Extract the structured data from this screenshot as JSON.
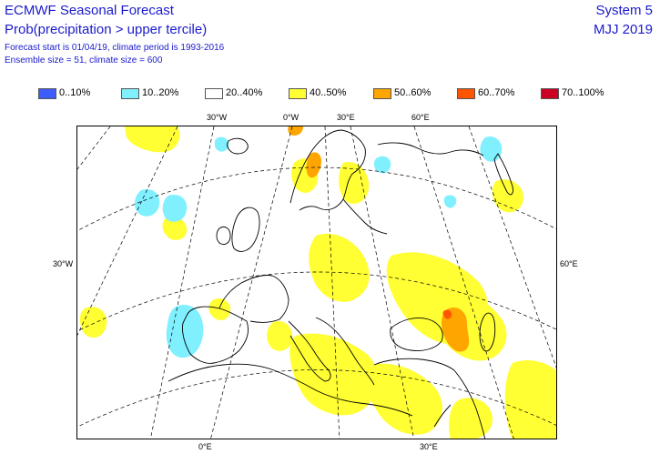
{
  "header": {
    "title": "ECMWF Seasonal Forecast",
    "subtitle": "Prob(precipitation > upper tercile)",
    "info_line1": "Forecast start is 01/04/19, climate period is 1993-2016",
    "info_line2": "Ensemble size = 51, climate size = 600",
    "system": "System 5",
    "period": "MJJ 2019"
  },
  "legend": [
    {
      "label": "0..10%",
      "color": "#3c5dff"
    },
    {
      "label": "10..20%",
      "color": "#80f0ff"
    },
    {
      "label": "20..40%",
      "color": "#ffffff"
    },
    {
      "label": "40..50%",
      "color": "#ffff33"
    },
    {
      "label": "50..60%",
      "color": "#ffa500"
    },
    {
      "label": "60..70%",
      "color": "#ff5400"
    },
    {
      "label": "70..100%",
      "color": "#cc0022"
    }
  ],
  "map_labels": {
    "top": [
      "30°W",
      "0°W",
      "30°E",
      "60°E"
    ],
    "bottom": [
      "0°E",
      "30°E"
    ],
    "left": "30°W",
    "right": "60°E"
  },
  "colors": {
    "text": "#1a1acc",
    "coast": "#000000",
    "grid": "#000000"
  }
}
